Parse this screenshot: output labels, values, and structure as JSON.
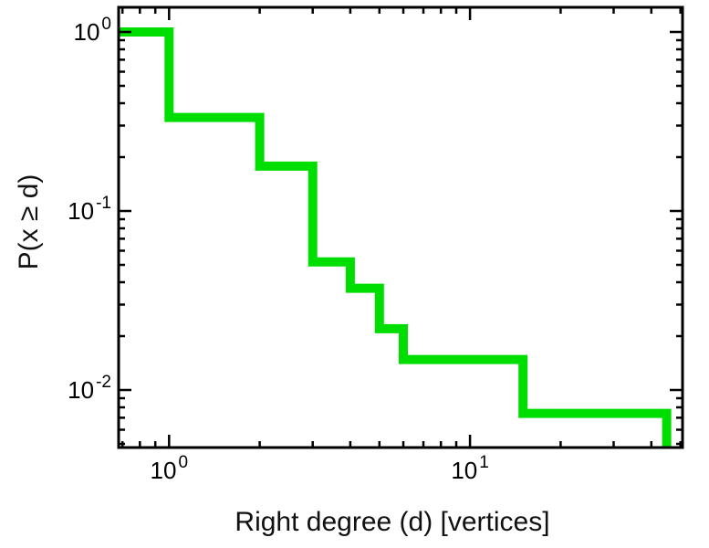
{
  "chart_data": {
    "type": "line",
    "style": "log-log step plot (complementary cumulative degree distribution)",
    "title": "",
    "xlabel": "Right degree (d) [vertices]",
    "ylabel": "P(x ≥ d)",
    "x_scale": "log",
    "y_scale": "log",
    "xlim": [
      0.68,
      50.8
    ],
    "ylim": [
      0.00477,
      1.374
    ],
    "grid": false,
    "legend": null,
    "frame_color": "#000000",
    "x_ticks": [
      {
        "value": 1,
        "mantissa": "10",
        "exponent": "0"
      },
      {
        "value": 10,
        "mantissa": "10",
        "exponent": "1"
      }
    ],
    "y_ticks": [
      {
        "value": 1,
        "mantissa": "10",
        "exponent": "0"
      },
      {
        "value": 0.1,
        "mantissa": "10",
        "exponent": "-1"
      },
      {
        "value": 0.01,
        "mantissa": "10",
        "exponent": "-2"
      }
    ],
    "series": [
      {
        "name": "right-degree-ccdf",
        "color": "#00dd00",
        "line_width": 10,
        "step_levels": [
          {
            "d_from": 0.68,
            "d_to": 1,
            "p": 1.0
          },
          {
            "d_from": 1,
            "d_to": 2,
            "p": 0.333
          },
          {
            "d_from": 2,
            "d_to": 3,
            "p": 0.178
          },
          {
            "d_from": 3,
            "d_to": 4,
            "p": 0.052
          },
          {
            "d_from": 4,
            "d_to": 5,
            "p": 0.037
          },
          {
            "d_from": 5,
            "d_to": 6,
            "p": 0.022
          },
          {
            "d_from": 6,
            "d_to": 15,
            "p": 0.0148
          },
          {
            "d_from": 15,
            "d_to": 45,
            "p": 0.0074
          },
          {
            "d_from": 45,
            "d_to": 45,
            "p": 0.0045
          }
        ]
      }
    ]
  }
}
